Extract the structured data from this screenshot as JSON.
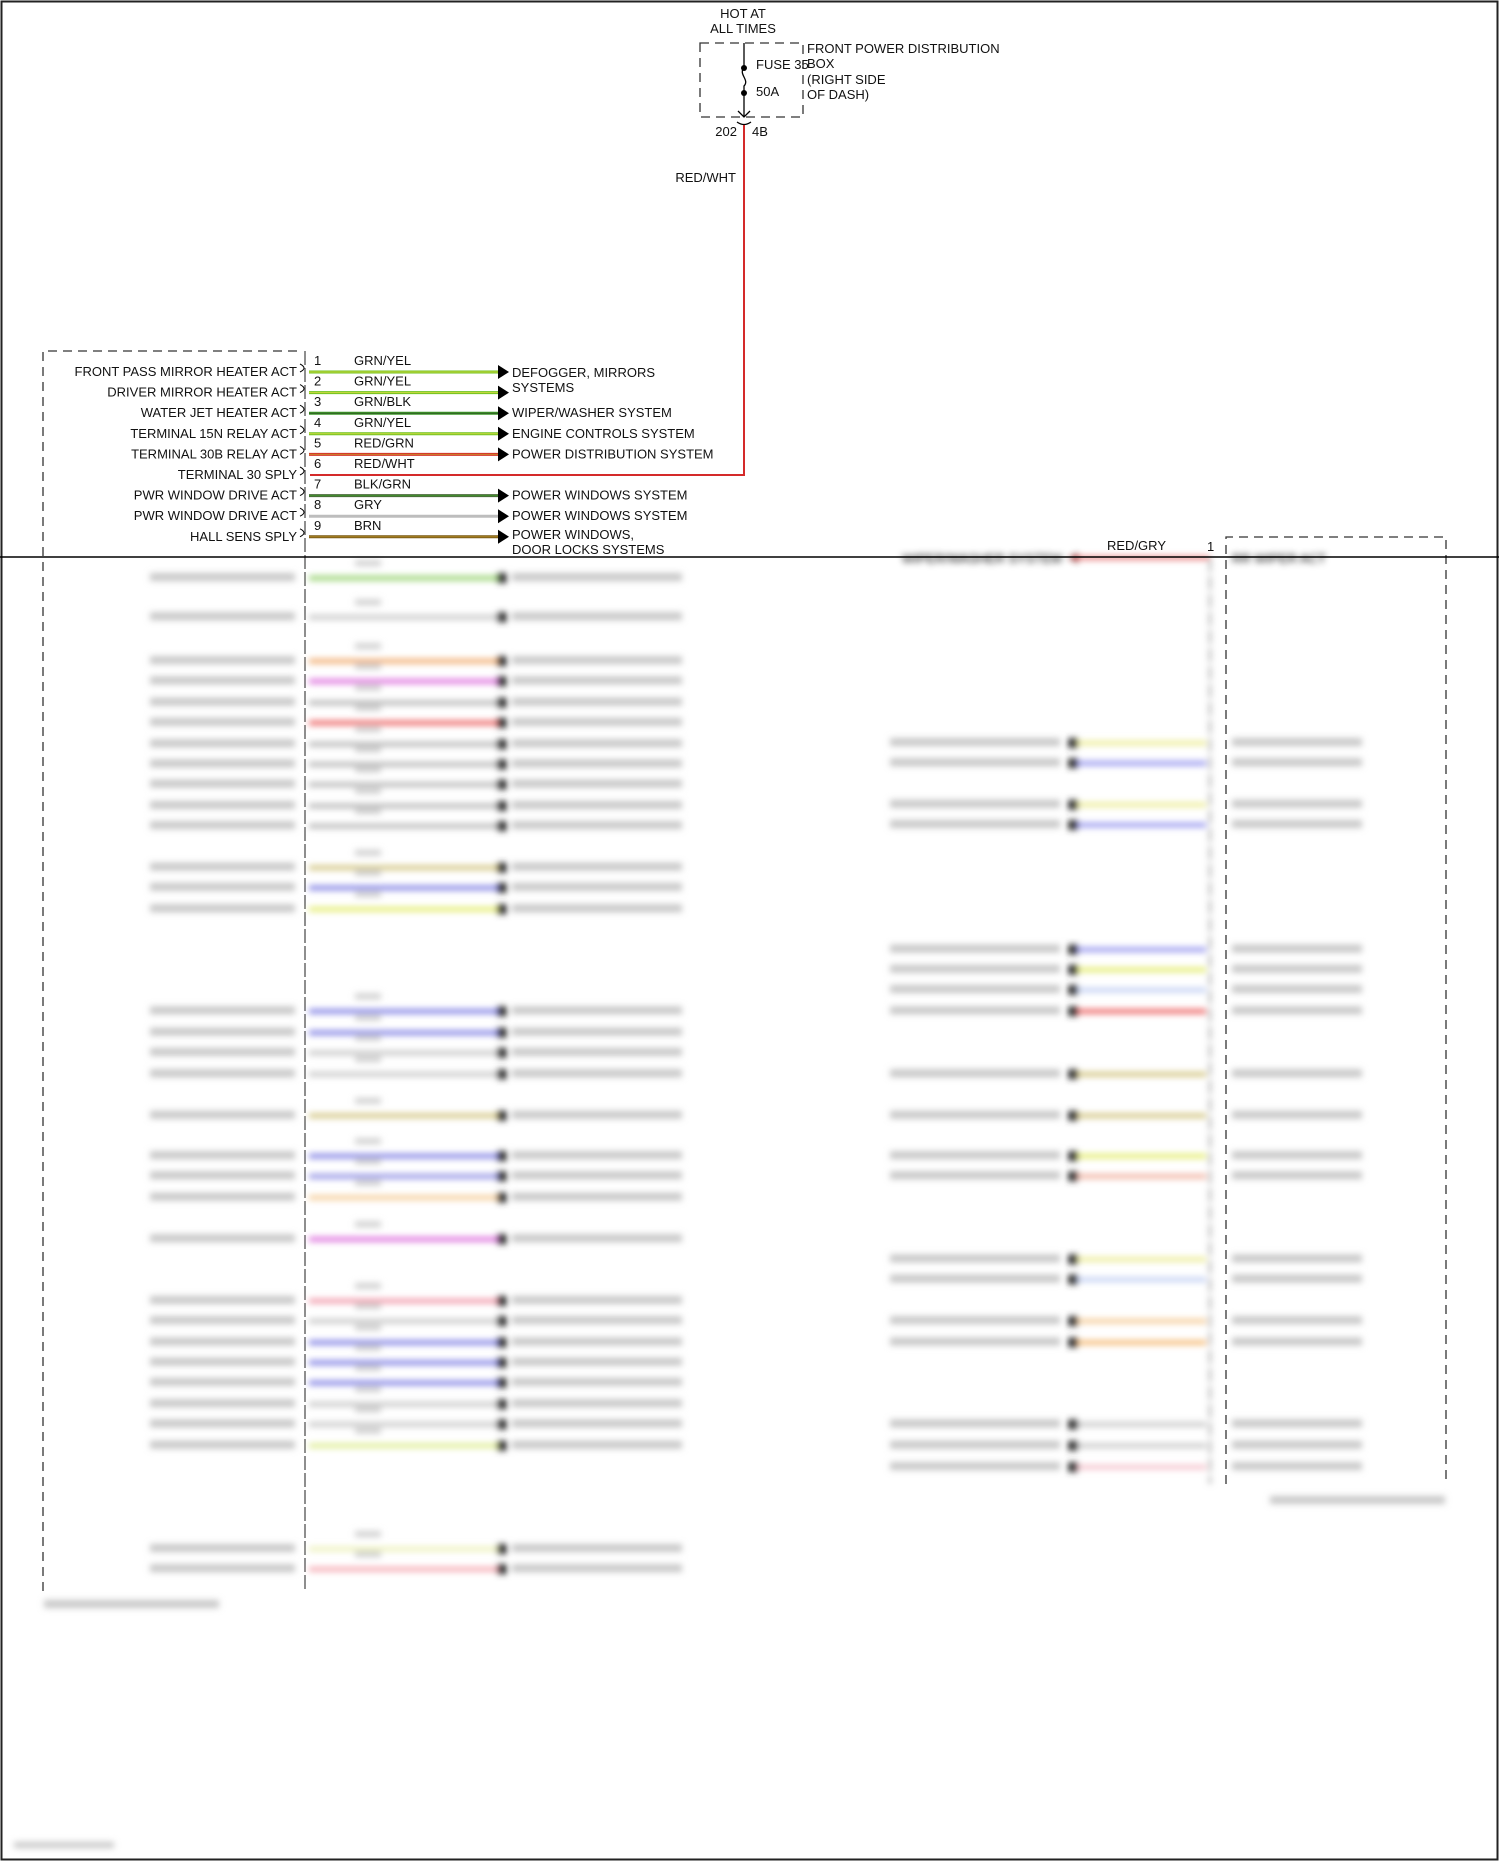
{
  "fuse_block": {
    "hot_label_line1": "HOT AT",
    "hot_label_line2": "ALL TIMES",
    "fuse_name": "FUSE 35",
    "fuse_rating": "50A",
    "box_name_line1": "FRONT POWER DISTRIBUTION",
    "box_name_line2": "BOX",
    "box_name_line3": "(RIGHT SIDE",
    "box_name_line4": "OF DASH)",
    "connector_left": "202",
    "connector_right": "4B",
    "feed_wire_color_label": "RED/WHT",
    "feed_wire_color": "#d42a2a"
  },
  "left_module": {
    "pins": [
      {
        "pin": "1",
        "function": "FRONT PASS MIRROR HEATER ACT",
        "wire": "GRN/YEL",
        "color": "#6fc21f",
        "stripe": "#e6e04a",
        "destination": "DEFOGGER, MIRRORS",
        "destination2": "SYSTEMS"
      },
      {
        "pin": "2",
        "function": "DRIVER MIRROR HEATER ACT",
        "wire": "GRN/YEL",
        "color": "#6fc21f",
        "stripe": "#e6e04a",
        "destination": "",
        "destination2": ""
      },
      {
        "pin": "3",
        "function": "WATER JET HEATER ACT",
        "wire": "GRN/BLK",
        "color": "#3f9a2a",
        "stripe": "#2a4a22",
        "destination": "WIPER/WASHER SYSTEM",
        "destination2": ""
      },
      {
        "pin": "4",
        "function": "TERMINAL 15N RELAY ACT",
        "wire": "GRN/YEL",
        "color": "#6fc21f",
        "stripe": "#e6e04a",
        "destination": "ENGINE CONTROLS SYSTEM",
        "destination2": ""
      },
      {
        "pin": "5",
        "function": "TERMINAL 30B RELAY ACT",
        "wire": "RED/GRN",
        "color": "#d4322a",
        "stripe": "#c89a2a",
        "destination": "POWER DISTRIBUTION SYSTEM",
        "destination2": ""
      },
      {
        "pin": "6",
        "function": "TERMINAL 30 SPLY",
        "wire": "RED/WHT",
        "color": "#d42a2a",
        "stripe": "#d42a2a",
        "destination": "",
        "destination2": ""
      },
      {
        "pin": "7",
        "function": "PWR WINDOW DRIVE ACT",
        "wire": "BLK/GRN",
        "color": "#4a6a3a",
        "stripe": "#3f9a2a",
        "destination": "POWER WINDOWS SYSTEM",
        "destination2": ""
      },
      {
        "pin": "8",
        "function": "PWR WINDOW DRIVE ACT",
        "wire": "GRY",
        "color": "#bdbdbd",
        "stripe": "#bdbdbd",
        "destination": "POWER WINDOWS SYSTEM",
        "destination2": ""
      },
      {
        "pin": "9",
        "function": "HALL SENS SPLY",
        "wire": "BRN",
        "color": "#7a5a14",
        "stripe": "#b8922a",
        "destination": "POWER WINDOWS,",
        "destination2": "DOOR LOCKS SYSTEMS"
      }
    ]
  },
  "right_module": {
    "pin": "1",
    "function": "RR WIPER ACT",
    "wire": "RED/GRY",
    "wire_color": "#e05050",
    "destination": "WIPER/WASHER SYSTEM"
  }
}
